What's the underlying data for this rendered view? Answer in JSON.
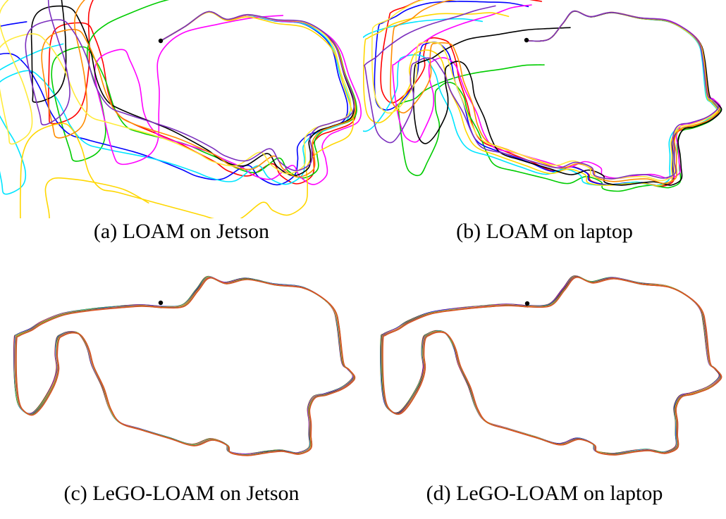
{
  "colors": [
    "#ff0000",
    "#00cc00",
    "#0000ff",
    "#00e5ff",
    "#ff00ff",
    "#ffd700",
    "#000000",
    "#ff8c00",
    "#ffeb3b",
    "#7b2fbe",
    "#20c060",
    "#e05020"
  ],
  "panels": [
    {
      "id": "a",
      "caption": "(a) LOAM on Jetson"
    },
    {
      "id": "b",
      "caption": "(b) LOAM on laptop"
    },
    {
      "id": "c",
      "caption": "(c) LeGO-LOAM on Jetson"
    },
    {
      "id": "d",
      "caption": "(d) LeGO-LOAM on laptop"
    }
  ]
}
